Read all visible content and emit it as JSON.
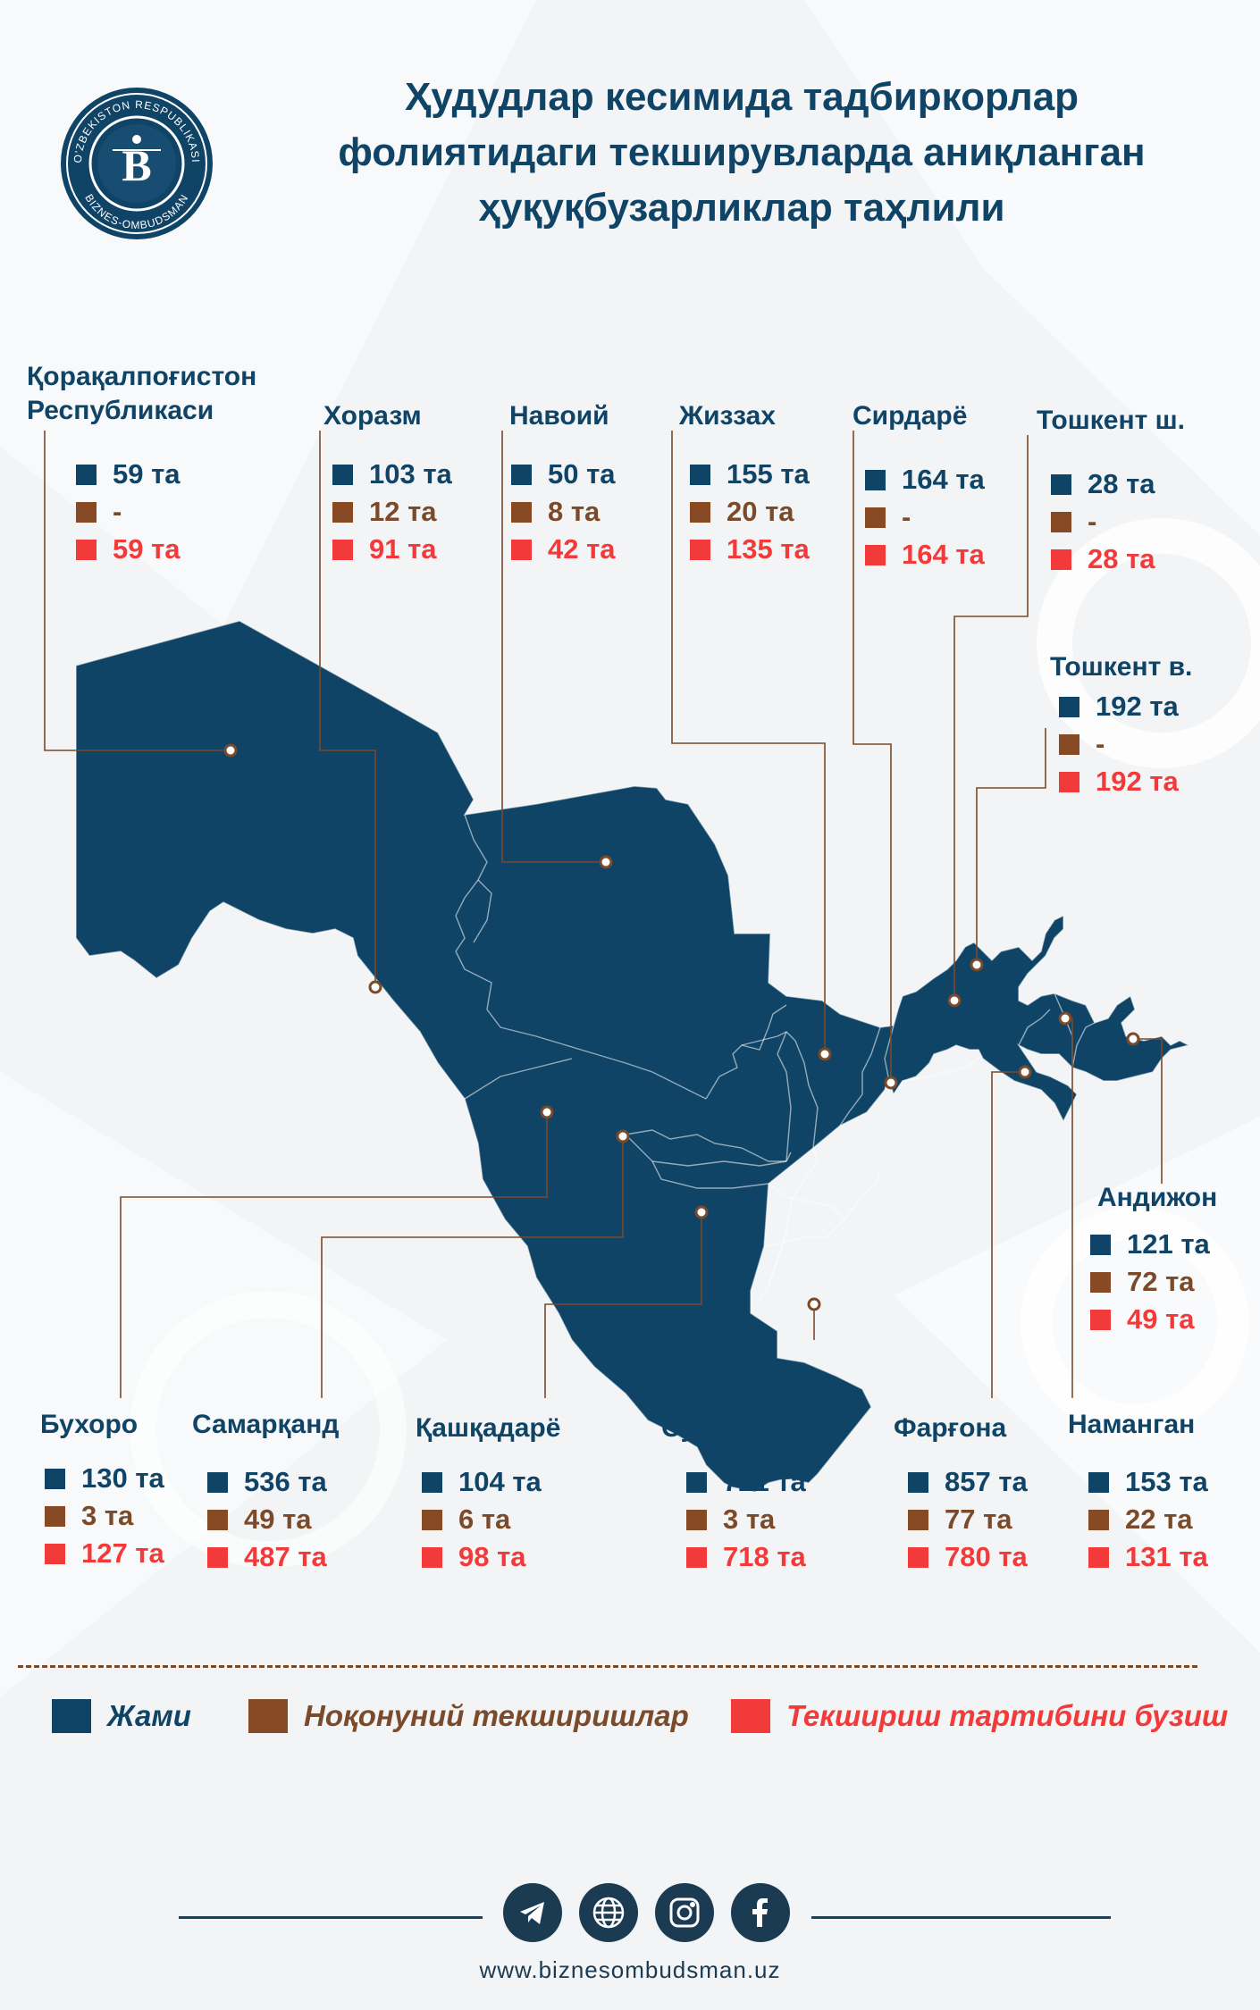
{
  "logo": {
    "top_text": "O'ZBEKISTON RESPUBLIKASI",
    "bottom_text": "BIZNES-OMBUDSMAN",
    "letter": "B"
  },
  "title": {
    "line1": "Ҳудудлар кесимида тадбиркорлар",
    "line2": "фолиятидаги текширувларда аниқланган",
    "line3": "ҳуқуқбузарликлар таҳлили"
  },
  "colors": {
    "total": "#0f4466",
    "illegal": "#874a25",
    "violation": "#f23a3a",
    "map": "#0f4466"
  },
  "regions": [
    {
      "id": "karakalpakstan",
      "name": "Қорақалпоғистон\nРеспубликаси",
      "total": "59 та",
      "illegal": "-",
      "violation": "59 та"
    },
    {
      "id": "khorezm",
      "name": "Хоразм",
      "total": "103 та",
      "illegal": "12 та",
      "violation": "91 та"
    },
    {
      "id": "navoi",
      "name": "Навоий",
      "total": "50 та",
      "illegal": "8 та",
      "violation": "42 та"
    },
    {
      "id": "jizzakh",
      "name": "Жиззах",
      "total": "155 та",
      "illegal": "20 та",
      "violation": "135 та"
    },
    {
      "id": "syrdarya",
      "name": "Сирдарё",
      "total": "164 та",
      "illegal": "-",
      "violation": "164 та"
    },
    {
      "id": "tashkent_city",
      "name": "Тошкент ш.",
      "total": "28 та",
      "illegal": "-",
      "violation": "28 та"
    },
    {
      "id": "tashkent_region",
      "name": "Тошкент в.",
      "total": "192 та",
      "illegal": "-",
      "violation": "192 та"
    },
    {
      "id": "andijan",
      "name": "Андижон",
      "total": "121 та",
      "illegal": "72 та",
      "violation": "49 та"
    },
    {
      "id": "bukhara",
      "name": "Бухоро",
      "total": "130 та",
      "illegal": "3 та",
      "violation": "127 та"
    },
    {
      "id": "samarkand",
      "name": "Самарқанд",
      "total": "536 та",
      "illegal": "49 та",
      "violation": "487 та"
    },
    {
      "id": "kashkadarya",
      "name": "Қашқадарё",
      "total": "104 та",
      "illegal": "6 та",
      "violation": "98 та"
    },
    {
      "id": "surkhandarya",
      "name": "Сурхондарё",
      "total": "721 та",
      "illegal": "3 та",
      "violation": "718 та"
    },
    {
      "id": "fergana",
      "name": "Фарғона",
      "total": "857 та",
      "illegal": "77 та",
      "violation": "780 та"
    },
    {
      "id": "namangan",
      "name": "Наманган",
      "total": "153 та",
      "illegal": "22 та",
      "violation": "131 та"
    }
  ],
  "legend": {
    "total": "Жами",
    "illegal": "Ноқонуний текширишлар",
    "violation": "Текшириш тартибини бузиш"
  },
  "social": [
    "telegram-icon",
    "globe-icon",
    "instagram-icon",
    "facebook-icon"
  ],
  "website": "www.biznesombudsman.uz"
}
